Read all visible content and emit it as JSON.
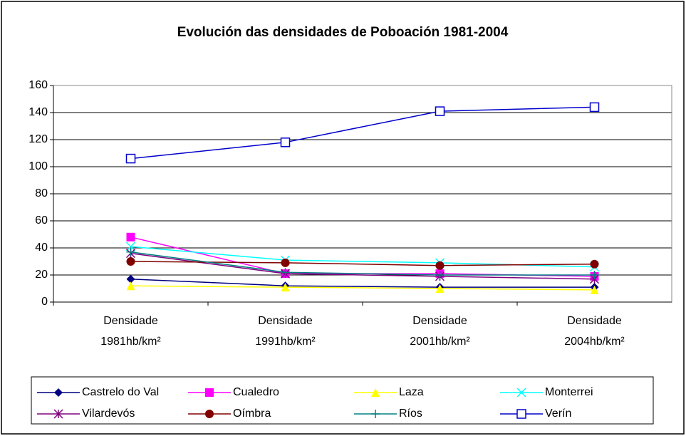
{
  "chart_data": {
    "type": "line",
    "title": "Evolución das densidades de Poboación 1981-2004",
    "categories": [
      "Densidade 1981hb/km²",
      "Densidade 1991hb/km²",
      "Densidade 2001hb/km²",
      "Densidade 2004hb/km²"
    ],
    "ylim": [
      0,
      160
    ],
    "yticks": [
      0,
      20,
      40,
      60,
      80,
      100,
      120,
      140,
      160
    ],
    "grid": true,
    "legend": "bottom",
    "series": [
      {
        "name": "Castrelo do Val",
        "color": "#000080",
        "marker": "diamond",
        "values": [
          17,
          12,
          11,
          11
        ]
      },
      {
        "name": "Cualedro",
        "color": "#ff00ff",
        "marker": "square",
        "values": [
          48,
          21,
          21,
          19
        ]
      },
      {
        "name": "Laza",
        "color": "#ffff00",
        "marker": "triangle",
        "values": [
          12,
          11,
          10,
          9
        ]
      },
      {
        "name": "Monterrei",
        "color": "#00ffff",
        "marker": "x",
        "values": [
          41,
          31,
          29,
          26
        ]
      },
      {
        "name": "Vilardevós",
        "color": "#800080",
        "marker": "star",
        "values": [
          36,
          21,
          19,
          17
        ]
      },
      {
        "name": "Oímbra",
        "color": "#800000",
        "marker": "circle",
        "values": [
          30,
          29,
          27,
          28
        ]
      },
      {
        "name": "Ríos",
        "color": "#008080",
        "marker": "plus",
        "values": [
          37,
          22,
          20,
          20
        ]
      },
      {
        "name": "Verín",
        "color": "#0000cc",
        "marker": "open-square",
        "values": [
          106,
          118,
          141,
          144
        ]
      }
    ]
  }
}
